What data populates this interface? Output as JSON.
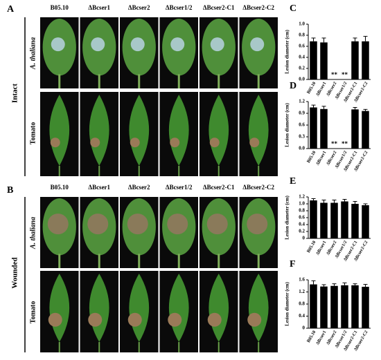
{
  "figure": {
    "panels": [
      {
        "label": "A",
        "condition": "Intact",
        "rows": [
          "A. thaliana",
          "Tomato"
        ]
      },
      {
        "label": "B",
        "condition": "Wounded",
        "rows": [
          "A. thaliana",
          "Tomato"
        ]
      }
    ],
    "columns": [
      "B05.10",
      "ΔBcser1",
      "ΔBcser2",
      "ΔBcser1/2",
      "ΔBcser2-C1",
      "ΔBcser2-C2"
    ]
  },
  "chart_data": [
    {
      "type": "bar",
      "label": "C",
      "ylabel": "Lesion diameter (cm)",
      "color": "#000000",
      "categories": [
        "B05.10",
        "ΔBcser1",
        "ΔBcser2",
        "ΔBcser1/2",
        "ΔBcser2-C1",
        "ΔBcser2-C2"
      ],
      "values": [
        0.69,
        0.67,
        0,
        0,
        0.69,
        0.69
      ],
      "errors": [
        0.06,
        0.08,
        0,
        0,
        0.06,
        0.09
      ],
      "annotations": [
        null,
        null,
        "**",
        "**",
        null,
        null
      ],
      "ylim": [
        0,
        1.0
      ],
      "yticks": [
        {
          "value": 0,
          "label": "0.0"
        },
        0.2,
        0.4,
        0.6,
        0.8,
        {
          "value": 1,
          "label": "1.0"
        }
      ]
    },
    {
      "type": "bar",
      "label": "D",
      "ylabel": "Lesion diameter (cm)",
      "color": "#000000",
      "categories": [
        "B05.10",
        "ΔBcser1",
        "ΔBcser2",
        "ΔBcser1/2",
        "ΔBcser2-C1",
        "ΔBcser2-C2"
      ],
      "values": [
        1.05,
        1.01,
        0,
        0,
        1.0,
        0.96
      ],
      "errors": [
        0.06,
        0.07,
        0,
        0,
        0.05,
        0.04
      ],
      "annotations": [
        null,
        null,
        "**",
        "**",
        null,
        null
      ],
      "ylim": [
        0,
        1.2
      ],
      "yticks": [
        {
          "value": 0,
          "label": "0.0"
        },
        0.3,
        0.6,
        0.9,
        1.2
      ]
    },
    {
      "type": "bar",
      "label": "E",
      "ylabel": "Lesion diameter (cm)",
      "color": "#000000",
      "categories": [
        "B05.10",
        "ΔBcser1",
        "ΔBcser2",
        "ΔBcser1/2",
        "ΔBcser2-C1",
        "ΔBcser2-C2"
      ],
      "values": [
        1.1,
        1.03,
        1.03,
        1.07,
        1.0,
        0.96
      ],
      "errors": [
        0.05,
        0.08,
        0.08,
        0.06,
        0.07,
        0.04
      ],
      "annotations": [
        null,
        null,
        null,
        null,
        null,
        null
      ],
      "ylim": [
        0,
        1.2
      ],
      "yticks": [
        0,
        0.2,
        0.4,
        0.6,
        0.8,
        {
          "value": 1,
          "label": "1.0"
        },
        1.2
      ]
    },
    {
      "type": "bar",
      "label": "F",
      "ylabel": "Lesion diameter (cm)",
      "color": "#000000",
      "categories": [
        "B05.10",
        "ΔBcser1",
        "ΔBcser2",
        "ΔBcser1/2",
        "ΔBcser2-C1",
        "ΔBcser2-C2"
      ],
      "values": [
        1.45,
        1.38,
        1.4,
        1.42,
        1.42,
        1.37
      ],
      "errors": [
        0.12,
        0.06,
        0.07,
        0.08,
        0.05,
        0.08
      ],
      "annotations": [
        null,
        null,
        null,
        null,
        null,
        null
      ],
      "ylim": [
        0,
        1.6
      ],
      "yticks": [
        0,
        0.4,
        0.8,
        1.2,
        1.6
      ]
    }
  ]
}
